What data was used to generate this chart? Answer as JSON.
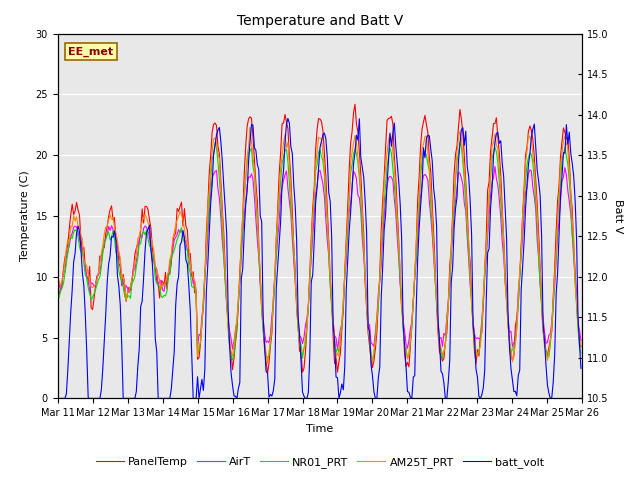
{
  "title": "Temperature and Batt V",
  "xlabel": "Time",
  "ylabel_left": "Temperature (C)",
  "ylabel_right": "Batt V",
  "annotation": "EE_met",
  "ylim_left": [
    0,
    30
  ],
  "ylim_right": [
    10.5,
    15.0
  ],
  "xtick_labels": [
    "Mar 11",
    "Mar 12",
    "Mar 13",
    "Mar 14",
    "Mar 15",
    "Mar 16",
    "Mar 17",
    "Mar 18",
    "Mar 19",
    "Mar 20",
    "Mar 21",
    "Mar 22",
    "Mar 23",
    "Mar 24",
    "Mar 25",
    "Mar 26"
  ],
  "yticks_left": [
    0,
    5,
    10,
    15,
    20,
    25,
    30
  ],
  "yticks_right": [
    10.5,
    11.0,
    11.5,
    12.0,
    12.5,
    13.0,
    13.5,
    14.0,
    14.5,
    15.0
  ],
  "bg_color": "#e8e8e8",
  "grid_color": "#ffffff",
  "title_fontsize": 10,
  "label_fontsize": 8,
  "tick_fontsize": 7,
  "legend_fontsize": 8,
  "lines": {
    "PanelTemp": {
      "color": "#ff0000",
      "lw": 0.8
    },
    "AirT": {
      "color": "#ff00ff",
      "lw": 0.8
    },
    "NR01_PRT": {
      "color": "#00dd00",
      "lw": 0.8
    },
    "AM25T_PRT": {
      "color": "#ff8800",
      "lw": 0.8
    },
    "batt_volt": {
      "color": "#0000ff",
      "lw": 0.8
    }
  },
  "annotation_color": "#8B0000",
  "annotation_bg": "#ffffaa",
  "annotation_edge": "#996600"
}
